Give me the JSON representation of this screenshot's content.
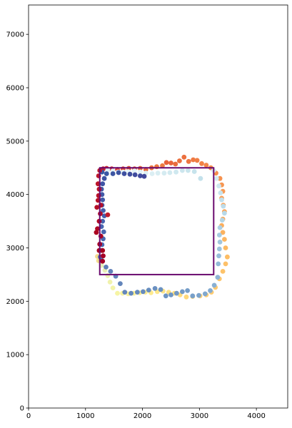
{
  "chart_data": {
    "type": "scatter",
    "title": "",
    "xlabel": "",
    "ylabel": "",
    "xlim": [
      0,
      4550
    ],
    "ylim": [
      0,
      7550
    ],
    "x_ticks": [
      0,
      1000,
      2000,
      3000,
      4000
    ],
    "y_ticks": [
      0,
      1000,
      2000,
      3000,
      4000,
      5000,
      6000,
      7000
    ],
    "grid": false,
    "legend": "none",
    "colormap": "RdYlBu",
    "rectangle": {
      "x0": 1250,
      "y0": 2500,
      "x1": 3250,
      "y1": 4500,
      "color": "#6a0a6e"
    },
    "points": [
      {
        "x": 1310,
        "y": 4480,
        "c": "#c41a2a"
      },
      {
        "x": 1370,
        "y": 4490,
        "c": "#d22b2e"
      },
      {
        "x": 1460,
        "y": 4480,
        "c": "#d7352f"
      },
      {
        "x": 1560,
        "y": 4470,
        "c": "#db3f31"
      },
      {
        "x": 1660,
        "y": 4480,
        "c": "#de4a33"
      },
      {
        "x": 1760,
        "y": 4490,
        "c": "#e05235"
      },
      {
        "x": 1860,
        "y": 4480,
        "c": "#e25a37"
      },
      {
        "x": 1960,
        "y": 4490,
        "c": "#e46239"
      },
      {
        "x": 2060,
        "y": 4470,
        "c": "#e6693b"
      },
      {
        "x": 2160,
        "y": 4500,
        "c": "#e8703d"
      },
      {
        "x": 2250,
        "y": 4520,
        "c": "#ea763f"
      },
      {
        "x": 2350,
        "y": 4540,
        "c": "#ec7c42"
      },
      {
        "x": 2420,
        "y": 4600,
        "c": "#e8623a"
      },
      {
        "x": 2500,
        "y": 4590,
        "c": "#e8643b"
      },
      {
        "x": 2580,
        "y": 4570,
        "c": "#ea6b3c"
      },
      {
        "x": 2650,
        "y": 4630,
        "c": "#eb6f3e"
      },
      {
        "x": 2730,
        "y": 4700,
        "c": "#ec703f"
      },
      {
        "x": 2810,
        "y": 4620,
        "c": "#ee7541"
      },
      {
        "x": 2890,
        "y": 4650,
        "c": "#ef7a43"
      },
      {
        "x": 2960,
        "y": 4640,
        "c": "#f07e45"
      },
      {
        "x": 3040,
        "y": 4580,
        "c": "#f28247"
      },
      {
        "x": 3120,
        "y": 4550,
        "c": "#f38649"
      },
      {
        "x": 3200,
        "y": 4500,
        "c": "#f48a4b"
      },
      {
        "x": 3290,
        "y": 4400,
        "c": "#f58e4d"
      },
      {
        "x": 3360,
        "y": 4300,
        "c": "#f6924f"
      },
      {
        "x": 3390,
        "y": 4180,
        "c": "#f79651"
      },
      {
        "x": 3410,
        "y": 4060,
        "c": "#f89a53"
      },
      {
        "x": 3390,
        "y": 3930,
        "c": "#f99e55"
      },
      {
        "x": 3420,
        "y": 3800,
        "c": "#faa257"
      },
      {
        "x": 3440,
        "y": 3680,
        "c": "#faa659"
      },
      {
        "x": 3410,
        "y": 3540,
        "c": "#fbaa5b"
      },
      {
        "x": 3390,
        "y": 3420,
        "c": "#fbae5d"
      },
      {
        "x": 3410,
        "y": 3290,
        "c": "#fbb25f"
      },
      {
        "x": 3440,
        "y": 3160,
        "c": "#fcb661"
      },
      {
        "x": 3460,
        "y": 3000,
        "c": "#fcb963"
      },
      {
        "x": 3490,
        "y": 2830,
        "c": "#fdbd65"
      },
      {
        "x": 3460,
        "y": 2700,
        "c": "#fdc068"
      },
      {
        "x": 3410,
        "y": 2560,
        "c": "#fdc36a"
      },
      {
        "x": 3350,
        "y": 2420,
        "c": "#fdc66c"
      },
      {
        "x": 3280,
        "y": 2260,
        "c": "#fec96f"
      },
      {
        "x": 3210,
        "y": 2170,
        "c": "#fecb71"
      },
      {
        "x": 3120,
        "y": 2120,
        "c": "#fece73"
      },
      {
        "x": 3010,
        "y": 2100,
        "c": "#fed176"
      },
      {
        "x": 2880,
        "y": 2090,
        "c": "#fed478"
      },
      {
        "x": 2770,
        "y": 2080,
        "c": "#fed87b"
      },
      {
        "x": 2660,
        "y": 2120,
        "c": "#fedb7e"
      },
      {
        "x": 2560,
        "y": 2150,
        "c": "#fede81"
      },
      {
        "x": 2460,
        "y": 2170,
        "c": "#fee184"
      },
      {
        "x": 2360,
        "y": 2190,
        "c": "#fee487"
      },
      {
        "x": 2260,
        "y": 2180,
        "c": "#fee78a"
      },
      {
        "x": 2150,
        "y": 2160,
        "c": "#feea8d"
      },
      {
        "x": 2050,
        "y": 2170,
        "c": "#fdec90"
      },
      {
        "x": 1950,
        "y": 2160,
        "c": "#fcee94"
      },
      {
        "x": 1850,
        "y": 2150,
        "c": "#fbf098"
      },
      {
        "x": 1750,
        "y": 2140,
        "c": "#faf29c"
      },
      {
        "x": 1650,
        "y": 2150,
        "c": "#f8f3a0"
      },
      {
        "x": 1560,
        "y": 2150,
        "c": "#f6f4a4"
      },
      {
        "x": 1480,
        "y": 2250,
        "c": "#f3f3a8"
      },
      {
        "x": 1430,
        "y": 2360,
        "c": "#f0f2ac"
      },
      {
        "x": 1390,
        "y": 2480,
        "c": "#ecf0b0"
      },
      {
        "x": 1340,
        "y": 2580,
        "c": "#e8eeb4"
      },
      {
        "x": 1280,
        "y": 2670,
        "c": "#e4ecb8"
      },
      {
        "x": 1230,
        "y": 2760,
        "c": "#f3de8e"
      },
      {
        "x": 1210,
        "y": 2840,
        "c": "#f4d98a"
      },
      {
        "x": 3250,
        "y": 4450,
        "c": "#d8ecf2"
      },
      {
        "x": 3300,
        "y": 4300,
        "c": "#d3eaf1"
      },
      {
        "x": 3340,
        "y": 4160,
        "c": "#cde6ef"
      },
      {
        "x": 3370,
        "y": 4030,
        "c": "#c8e3ee"
      },
      {
        "x": 3390,
        "y": 3900,
        "c": "#c2e0ec"
      },
      {
        "x": 3420,
        "y": 3780,
        "c": "#bddcea"
      },
      {
        "x": 3440,
        "y": 3650,
        "c": "#b7d9e8"
      },
      {
        "x": 3400,
        "y": 3520,
        "c": "#b2d5e6"
      },
      {
        "x": 3360,
        "y": 3380,
        "c": "#accfe4"
      },
      {
        "x": 3350,
        "y": 3240,
        "c": "#a7cbe2"
      },
      {
        "x": 3360,
        "y": 3110,
        "c": "#a2c6df"
      },
      {
        "x": 3350,
        "y": 2980,
        "c": "#9dc2dd"
      },
      {
        "x": 3340,
        "y": 2850,
        "c": "#98bddb"
      },
      {
        "x": 3330,
        "y": 2700,
        "c": "#93b9d8"
      },
      {
        "x": 3320,
        "y": 2450,
        "c": "#8eb4d6"
      },
      {
        "x": 3260,
        "y": 2300,
        "c": "#89b0d3"
      },
      {
        "x": 3190,
        "y": 2200,
        "c": "#84abd1"
      },
      {
        "x": 3100,
        "y": 2140,
        "c": "#7fa7ce"
      },
      {
        "x": 2990,
        "y": 2110,
        "c": "#7ba3cc"
      },
      {
        "x": 2880,
        "y": 2100,
        "c": "#78a0ca"
      },
      {
        "x": 2790,
        "y": 2200,
        "c": "#759dc8"
      },
      {
        "x": 2700,
        "y": 2180,
        "c": "#739ac6"
      },
      {
        "x": 2600,
        "y": 2150,
        "c": "#7198c5"
      },
      {
        "x": 2500,
        "y": 2120,
        "c": "#6f96c4"
      },
      {
        "x": 2410,
        "y": 2100,
        "c": "#6d94c3"
      },
      {
        "x": 2320,
        "y": 2220,
        "c": "#6b92c2"
      },
      {
        "x": 2220,
        "y": 2240,
        "c": "#6a90c1"
      },
      {
        "x": 2110,
        "y": 2210,
        "c": "#688ec0"
      },
      {
        "x": 2010,
        "y": 2180,
        "c": "#678cbf"
      },
      {
        "x": 1910,
        "y": 2170,
        "c": "#668abe"
      },
      {
        "x": 1800,
        "y": 2150,
        "c": "#6589bd"
      },
      {
        "x": 1690,
        "y": 2170,
        "c": "#6487bc"
      },
      {
        "x": 1610,
        "y": 2330,
        "c": "#6385bb"
      },
      {
        "x": 1530,
        "y": 2470,
        "c": "#6283ba"
      },
      {
        "x": 1440,
        "y": 2560,
        "c": "#6181b9"
      },
      {
        "x": 1360,
        "y": 2640,
        "c": "#5f7fb8"
      },
      {
        "x": 1280,
        "y": 2770,
        "c": "#5e7db7"
      },
      {
        "x": 1390,
        "y": 4460,
        "c": "#dff1f5"
      },
      {
        "x": 1480,
        "y": 4440,
        "c": "#e1f2f6"
      },
      {
        "x": 1570,
        "y": 4420,
        "c": "#e3f3f7"
      },
      {
        "x": 1660,
        "y": 4420,
        "c": "#e5f4f7"
      },
      {
        "x": 1750,
        "y": 4430,
        "c": "#e7f5f8"
      },
      {
        "x": 1860,
        "y": 4440,
        "c": "#e5f3f7"
      },
      {
        "x": 1960,
        "y": 4420,
        "c": "#e2f2f6"
      },
      {
        "x": 2060,
        "y": 4400,
        "c": "#def0f4"
      },
      {
        "x": 2170,
        "y": 4390,
        "c": "#dbeef3"
      },
      {
        "x": 2270,
        "y": 4400,
        "c": "#d8edf2"
      },
      {
        "x": 2380,
        "y": 4400,
        "c": "#d5ebf1"
      },
      {
        "x": 2480,
        "y": 4410,
        "c": "#d2eaf0"
      },
      {
        "x": 2590,
        "y": 4420,
        "c": "#cfe8ef"
      },
      {
        "x": 2700,
        "y": 4450,
        "c": "#cce6ee"
      },
      {
        "x": 2800,
        "y": 4450,
        "c": "#c9e5ed"
      },
      {
        "x": 2910,
        "y": 4430,
        "c": "#c6e3ec"
      },
      {
        "x": 3020,
        "y": 4300,
        "c": "#c3e1eb"
      },
      {
        "x": 1290,
        "y": 4420,
        "c": "#3a5aa5"
      },
      {
        "x": 1370,
        "y": 4390,
        "c": "#3b57a3"
      },
      {
        "x": 1480,
        "y": 4390,
        "c": "#3c55a2"
      },
      {
        "x": 1580,
        "y": 4410,
        "c": "#3d53a1"
      },
      {
        "x": 1680,
        "y": 4390,
        "c": "#3e50a0"
      },
      {
        "x": 1780,
        "y": 4380,
        "c": "#3f4e9f"
      },
      {
        "x": 1870,
        "y": 4370,
        "c": "#404c9e"
      },
      {
        "x": 1960,
        "y": 4350,
        "c": "#414a9d"
      },
      {
        "x": 2030,
        "y": 4340,
        "c": "#42489c"
      },
      {
        "x": 1330,
        "y": 4300,
        "c": "#3e53a3"
      },
      {
        "x": 1300,
        "y": 4200,
        "c": "#3f55a5"
      },
      {
        "x": 1280,
        "y": 4100,
        "c": "#4057a7"
      },
      {
        "x": 1290,
        "y": 4000,
        "c": "#4159a8"
      },
      {
        "x": 1300,
        "y": 3900,
        "c": "#425baa"
      },
      {
        "x": 1290,
        "y": 3800,
        "c": "#435dab"
      },
      {
        "x": 1310,
        "y": 3700,
        "c": "#445fad"
      },
      {
        "x": 1330,
        "y": 3600,
        "c": "#4561ae"
      },
      {
        "x": 1300,
        "y": 3500,
        "c": "#4663af"
      },
      {
        "x": 1280,
        "y": 3400,
        "c": "#4765b0"
      },
      {
        "x": 1320,
        "y": 3300,
        "c": "#4867b1"
      },
      {
        "x": 1310,
        "y": 3170,
        "c": "#4969b2"
      },
      {
        "x": 1290,
        "y": 3060,
        "c": "#4a6bb3"
      },
      {
        "x": 1280,
        "y": 2950,
        "c": "#4b6db4"
      },
      {
        "x": 1260,
        "y": 2830,
        "c": "#4c6fb5"
      },
      {
        "x": 1250,
        "y": 4450,
        "c": "#be1a2c"
      },
      {
        "x": 1230,
        "y": 4350,
        "c": "#bd182b"
      },
      {
        "x": 1220,
        "y": 4200,
        "c": "#bb162a"
      },
      {
        "x": 1240,
        "y": 4100,
        "c": "#b91429"
      },
      {
        "x": 1230,
        "y": 3980,
        "c": "#b81228"
      },
      {
        "x": 1220,
        "y": 3890,
        "c": "#b61027"
      },
      {
        "x": 1200,
        "y": 3760,
        "c": "#b40e26"
      },
      {
        "x": 1260,
        "y": 3640,
        "c": "#b20c25"
      },
      {
        "x": 1390,
        "y": 3620,
        "c": "#c01c2c"
      },
      {
        "x": 1240,
        "y": 3500,
        "c": "#b00a24"
      },
      {
        "x": 1210,
        "y": 3360,
        "c": "#ae0823"
      },
      {
        "x": 1190,
        "y": 3290,
        "c": "#ac0622"
      },
      {
        "x": 1270,
        "y": 3220,
        "c": "#aa0421"
      },
      {
        "x": 1250,
        "y": 3070,
        "c": "#a80220"
      },
      {
        "x": 1300,
        "y": 2950,
        "c": "#a60020"
      },
      {
        "x": 1310,
        "y": 2850,
        "c": "#a50026"
      },
      {
        "x": 1300,
        "y": 2750,
        "c": "#a50026"
      },
      {
        "x": 1240,
        "y": 2950,
        "c": "#a6011f"
      },
      {
        "x": 1270,
        "y": 3800,
        "c": "#b61027"
      }
    ]
  }
}
